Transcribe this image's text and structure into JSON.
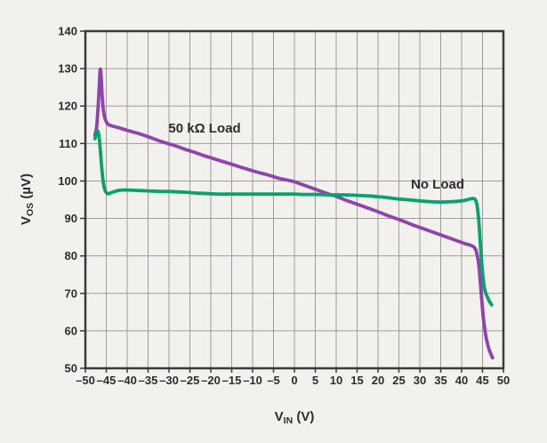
{
  "chart_data": {
    "type": "line",
    "title": "",
    "xlabel": {
      "pre": "V",
      "sub": "IN",
      "post": " (V)"
    },
    "ylabel": {
      "pre": "V",
      "sub": "OS",
      "post": " (µV)"
    },
    "xlim": [
      -50,
      50
    ],
    "ylim": [
      50,
      140
    ],
    "grid": "both",
    "legend_position": "inline-annotations",
    "x_ticks": [
      -50,
      -45,
      -40,
      -35,
      -30,
      -25,
      -20,
      -15,
      -10,
      -5,
      0,
      5,
      10,
      15,
      20,
      25,
      30,
      35,
      40,
      45,
      50
    ],
    "x_tick_labels": [
      "–50",
      "–45",
      "–40",
      "–35",
      "–30",
      "–25",
      "–20",
      "–15",
      "–10",
      "–5",
      "0",
      "5",
      "10",
      "15",
      "20",
      "25",
      "30",
      "35",
      "40",
      "45",
      "50"
    ],
    "y_ticks": [
      50,
      60,
      70,
      80,
      90,
      100,
      110,
      120,
      130,
      140
    ],
    "y_tick_labels": [
      "50",
      "60",
      "70",
      "80",
      "90",
      "100",
      "110",
      "120",
      "130",
      "140"
    ],
    "colors": {
      "background": "#f2f1ee",
      "grid": "#9c9c9c",
      "axis": "#3a3a3a",
      "text": "#2d2d2d",
      "purple_series": "#8f43ad",
      "green_series": "#09a26f"
    },
    "series": [
      {
        "name": "50 kΩ Load",
        "color": "#8f43ad",
        "points": [
          [
            -47.7,
            112.2
          ],
          [
            -47.3,
            114.5
          ],
          [
            -47.0,
            119.0
          ],
          [
            -46.7,
            125.0
          ],
          [
            -46.45,
            129.8
          ],
          [
            -46.2,
            127.5
          ],
          [
            -46.0,
            123.0
          ],
          [
            -45.7,
            119.0
          ],
          [
            -45.4,
            117.0
          ],
          [
            -45.0,
            115.8
          ],
          [
            -44.5,
            115.1
          ],
          [
            -44.0,
            114.8
          ],
          [
            -43.0,
            114.5
          ],
          [
            -42.0,
            114.2
          ],
          [
            -40.0,
            113.5
          ],
          [
            -38.0,
            112.9
          ],
          [
            -36.0,
            112.2
          ],
          [
            -34.0,
            111.4
          ],
          [
            -32.0,
            110.6
          ],
          [
            -30.0,
            109.9
          ],
          [
            -28.0,
            109.2
          ],
          [
            -26.0,
            108.4
          ],
          [
            -24.0,
            107.7
          ],
          [
            -22.0,
            106.9
          ],
          [
            -20.0,
            106.2
          ],
          [
            -18.0,
            105.5
          ],
          [
            -16.0,
            104.8
          ],
          [
            -14.0,
            104.1
          ],
          [
            -12.0,
            103.4
          ],
          [
            -10.0,
            102.7
          ],
          [
            -8.0,
            102.1
          ],
          [
            -6.0,
            101.5
          ],
          [
            -4.0,
            100.8
          ],
          [
            -2.0,
            100.3
          ],
          [
            0.0,
            99.8
          ],
          [
            2.0,
            99.0
          ],
          [
            4.0,
            98.2
          ],
          [
            6.0,
            97.4
          ],
          [
            8.0,
            96.6
          ],
          [
            10.0,
            95.9
          ],
          [
            12.0,
            95.0
          ],
          [
            14.0,
            94.2
          ],
          [
            16.0,
            93.4
          ],
          [
            18.0,
            92.6
          ],
          [
            20.0,
            91.8
          ],
          [
            22.0,
            90.9
          ],
          [
            24.0,
            90.1
          ],
          [
            26.0,
            89.3
          ],
          [
            28.0,
            88.4
          ],
          [
            30.0,
            87.6
          ],
          [
            32.0,
            86.8
          ],
          [
            34.0,
            86.0
          ],
          [
            36.0,
            85.2
          ],
          [
            38.0,
            84.4
          ],
          [
            40.0,
            83.6
          ],
          [
            41.0,
            83.2
          ],
          [
            42.0,
            82.9
          ],
          [
            43.0,
            82.3
          ],
          [
            43.5,
            81.2
          ],
          [
            44.0,
            78.5
          ],
          [
            44.4,
            74.0
          ],
          [
            44.8,
            68.5
          ],
          [
            45.2,
            63.5
          ],
          [
            45.6,
            60.0
          ],
          [
            46.0,
            57.5
          ],
          [
            46.5,
            55.3
          ],
          [
            47.0,
            53.8
          ],
          [
            47.4,
            52.8
          ]
        ]
      },
      {
        "name": "No Load",
        "color": "#09a26f",
        "points": [
          [
            -47.7,
            111.3
          ],
          [
            -47.4,
            112.6
          ],
          [
            -47.15,
            113.4
          ],
          [
            -46.9,
            112.9
          ],
          [
            -46.6,
            110.5
          ],
          [
            -46.3,
            106.5
          ],
          [
            -46.0,
            102.5
          ],
          [
            -45.7,
            99.5
          ],
          [
            -45.4,
            97.8
          ],
          [
            -45.0,
            96.9
          ],
          [
            -44.6,
            96.6
          ],
          [
            -44.0,
            96.8
          ],
          [
            -43.0,
            97.2
          ],
          [
            -42.0,
            97.5
          ],
          [
            -41.0,
            97.6
          ],
          [
            -40.0,
            97.6
          ],
          [
            -38.0,
            97.5
          ],
          [
            -36.0,
            97.4
          ],
          [
            -34.0,
            97.3
          ],
          [
            -32.0,
            97.2
          ],
          [
            -30.0,
            97.2
          ],
          [
            -28.0,
            97.1
          ],
          [
            -26.0,
            97.0
          ],
          [
            -24.0,
            96.8
          ],
          [
            -22.0,
            96.7
          ],
          [
            -20.0,
            96.6
          ],
          [
            -18.0,
            96.5
          ],
          [
            -16.0,
            96.5
          ],
          [
            -14.0,
            96.5
          ],
          [
            -12.0,
            96.5
          ],
          [
            -10.0,
            96.5
          ],
          [
            -8.0,
            96.5
          ],
          [
            -6.0,
            96.5
          ],
          [
            -4.0,
            96.5
          ],
          [
            -2.0,
            96.5
          ],
          [
            0.0,
            96.5
          ],
          [
            2.0,
            96.4
          ],
          [
            4.0,
            96.4
          ],
          [
            6.0,
            96.4
          ],
          [
            8.0,
            96.3
          ],
          [
            10.0,
            96.3
          ],
          [
            12.0,
            96.3
          ],
          [
            14.0,
            96.2
          ],
          [
            16.0,
            96.1
          ],
          [
            18.0,
            96.0
          ],
          [
            20.0,
            95.8
          ],
          [
            22.0,
            95.6
          ],
          [
            24.0,
            95.3
          ],
          [
            26.0,
            95.1
          ],
          [
            28.0,
            94.9
          ],
          [
            30.0,
            94.7
          ],
          [
            32.0,
            94.5
          ],
          [
            34.0,
            94.4
          ],
          [
            36.0,
            94.4
          ],
          [
            38.0,
            94.5
          ],
          [
            40.0,
            94.7
          ],
          [
            41.0,
            94.9
          ],
          [
            42.0,
            95.2
          ],
          [
            42.8,
            95.3
          ],
          [
            43.3,
            95.0
          ],
          [
            43.7,
            93.5
          ],
          [
            44.1,
            89.5
          ],
          [
            44.5,
            83.0
          ],
          [
            44.9,
            77.0
          ],
          [
            45.3,
            72.5
          ],
          [
            45.7,
            70.3
          ],
          [
            46.1,
            69.2
          ],
          [
            46.5,
            68.2
          ],
          [
            46.9,
            67.4
          ],
          [
            47.2,
            66.9
          ]
        ]
      }
    ],
    "annotations": [
      {
        "text": "50 kΩ Load",
        "x": -21.5,
        "y": 114.1
      },
      {
        "text": "No Load",
        "x": 34.3,
        "y": 99.2
      }
    ]
  }
}
